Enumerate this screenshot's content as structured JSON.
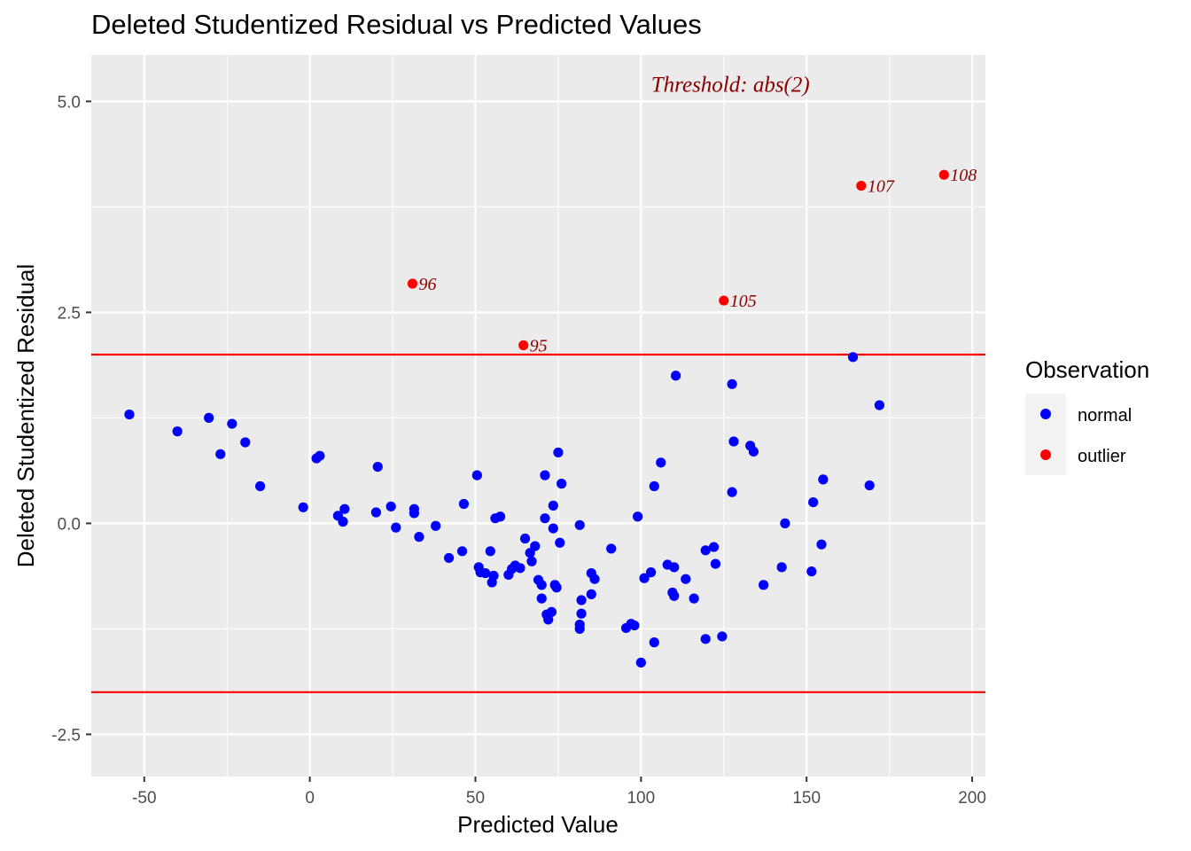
{
  "chart_data": {
    "type": "scatter",
    "title": "Deleted Studentized Residual vs Predicted Values",
    "xlabel": "Predicted Value",
    "ylabel": "Deleted Studentized Residual",
    "xlim": [
      -66,
      204
    ],
    "ylim": [
      -3.0,
      5.55
    ],
    "x_ticks": [
      -50,
      0,
      50,
      100,
      150,
      200
    ],
    "y_ticks": [
      -2.5,
      0.0,
      2.5,
      5.0
    ],
    "y_tick_labels": [
      "-2.5",
      "0.0",
      "2.5",
      "5.0"
    ],
    "grid": true,
    "threshold": {
      "value": 2,
      "label": "Threshold: abs(2)",
      "color": "#ff0000",
      "annotation_x": 127,
      "annotation_y": 5.2
    },
    "colors": {
      "normal": "#0000ff",
      "outlier": "#ff0000",
      "label": "#8b0000",
      "panel": "#ebebeb",
      "grid": "#ffffff"
    },
    "legend": {
      "title": "Observation",
      "position": "right",
      "entries": [
        "normal",
        "outlier"
      ]
    },
    "series": [
      {
        "name": "normal",
        "points": [
          [
            -54.5,
            1.29
          ],
          [
            -40,
            1.09
          ],
          [
            -30.5,
            1.25
          ],
          [
            -27,
            0.82
          ],
          [
            -23.5,
            1.18
          ],
          [
            -19.5,
            0.96
          ],
          [
            -15,
            0.44
          ],
          [
            -2,
            0.19
          ],
          [
            2,
            0.77
          ],
          [
            3,
            0.8
          ],
          [
            8.5,
            0.09
          ],
          [
            10,
            0.02
          ],
          [
            10.5,
            0.17
          ],
          [
            20,
            0.13
          ],
          [
            20.5,
            0.67
          ],
          [
            24.5,
            0.2
          ],
          [
            26,
            -0.05
          ],
          [
            31.5,
            0.17
          ],
          [
            31.5,
            0.12
          ],
          [
            33,
            -0.16
          ],
          [
            38,
            -0.03
          ],
          [
            42,
            -0.41
          ],
          [
            46,
            -0.33
          ],
          [
            46.5,
            0.23
          ],
          [
            50.5,
            0.57
          ],
          [
            51,
            -0.52
          ],
          [
            51.5,
            -0.58
          ],
          [
            53,
            -0.59
          ],
          [
            54.5,
            -0.33
          ],
          [
            55,
            -0.7
          ],
          [
            55.5,
            -0.62
          ],
          [
            56,
            0.06
          ],
          [
            57.5,
            0.08
          ],
          [
            60,
            -0.61
          ],
          [
            61,
            -0.54
          ],
          [
            62,
            -0.5
          ],
          [
            63.5,
            -0.53
          ],
          [
            65,
            -0.18
          ],
          [
            66.5,
            -0.35
          ],
          [
            67,
            -0.45
          ],
          [
            68,
            -0.27
          ],
          [
            69,
            -0.67
          ],
          [
            70,
            -0.73
          ],
          [
            70,
            -0.89
          ],
          [
            71,
            0.57
          ],
          [
            71,
            0.06
          ],
          [
            71.5,
            -1.08
          ],
          [
            72,
            -1.14
          ],
          [
            73,
            -1.05
          ],
          [
            73.5,
            -0.06
          ],
          [
            73.5,
            0.21
          ],
          [
            74,
            -0.73
          ],
          [
            74.5,
            -0.76
          ],
          [
            75,
            0.84
          ],
          [
            75.5,
            -0.23
          ],
          [
            76,
            0.47
          ],
          [
            81.5,
            -0.02
          ],
          [
            81.5,
            -1.25
          ],
          [
            81.5,
            -1.2
          ],
          [
            82,
            -1.07
          ],
          [
            82,
            -0.91
          ],
          [
            85,
            -0.59
          ],
          [
            85,
            -0.84
          ],
          [
            86,
            -0.66
          ],
          [
            91,
            -0.3
          ],
          [
            95.5,
            -1.24
          ],
          [
            97,
            -1.19
          ],
          [
            98,
            -1.21
          ],
          [
            99,
            0.08
          ],
          [
            100,
            -1.65
          ],
          [
            101,
            -0.65
          ],
          [
            103,
            -0.58
          ],
          [
            104,
            0.44
          ],
          [
            104,
            -1.41
          ],
          [
            106,
            0.72
          ],
          [
            108,
            -0.49
          ],
          [
            109.5,
            -0.82
          ],
          [
            110,
            -0.86
          ],
          [
            110,
            -0.52
          ],
          [
            110.5,
            1.75
          ],
          [
            113.5,
            -0.66
          ],
          [
            116,
            -0.89
          ],
          [
            119.5,
            -1.37
          ],
          [
            119.5,
            -0.32
          ],
          [
            122,
            -0.28
          ],
          [
            122.5,
            -0.48
          ],
          [
            124.5,
            -1.34
          ],
          [
            127.5,
            0.37
          ],
          [
            127.5,
            1.65
          ],
          [
            128,
            0.97
          ],
          [
            133,
            0.92
          ],
          [
            134,
            0.85
          ],
          [
            137,
            -0.73
          ],
          [
            142.5,
            -0.52
          ],
          [
            143.5,
            0.0
          ],
          [
            151.5,
            -0.57
          ],
          [
            152,
            0.25
          ],
          [
            154.5,
            -0.25
          ],
          [
            155,
            0.52
          ],
          [
            164,
            1.97
          ],
          [
            169,
            0.45
          ],
          [
            172,
            1.4
          ]
        ]
      },
      {
        "name": "outlier",
        "points": [
          {
            "x": 31,
            "y": 2.84,
            "label": "96"
          },
          {
            "x": 64.5,
            "y": 2.11,
            "label": "95"
          },
          {
            "x": 125,
            "y": 2.64,
            "label": "105"
          },
          {
            "x": 166.5,
            "y": 4.0,
            "label": "107"
          },
          {
            "x": 191.5,
            "y": 4.13,
            "label": "108"
          }
        ]
      }
    ]
  }
}
